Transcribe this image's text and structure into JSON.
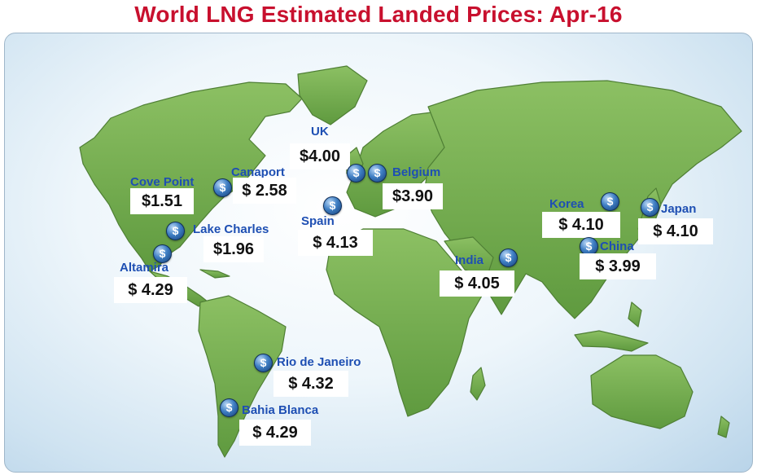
{
  "title": "World LNG Estimated Landed Prices: Apr-16",
  "coin_symbol": "$",
  "colors": {
    "title": "#c8102e",
    "land": "#6fa94a",
    "ocean": "#dbeaf5",
    "label": "#1e4fb3",
    "coin": "#2f6db5"
  },
  "markers": [
    {
      "name": "UK",
      "price": "$4.00"
    },
    {
      "name": "Belgium",
      "price": "$3.90"
    },
    {
      "name": "Cove Point",
      "price": "$1.51"
    },
    {
      "name": "Canaport",
      "price": "$  2.58"
    },
    {
      "name": "Spain",
      "price": "$  4.13"
    },
    {
      "name": "Lake Charles",
      "price": "$1.96"
    },
    {
      "name": "Altamira",
      "price": "$  4.29"
    },
    {
      "name": "India",
      "price": "$  4.05"
    },
    {
      "name": "Korea",
      "price": "$  4.10"
    },
    {
      "name": "Japan",
      "price": "$  4.10"
    },
    {
      "name": "China",
      "price": "$  3.99"
    },
    {
      "name": "Rio de Janeiro",
      "price": "$  4.32"
    },
    {
      "name": "Bahia Blanca",
      "price": "$  4.29"
    }
  ]
}
